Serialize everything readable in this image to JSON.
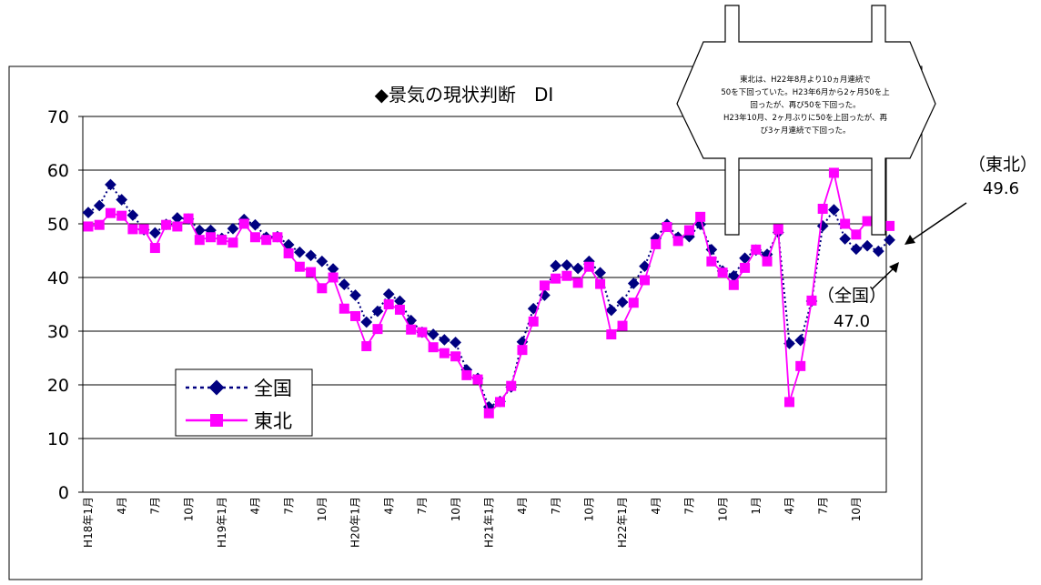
{
  "chart_data": {
    "type": "line",
    "title": "◆景気の現状判断　DI",
    "xlabel": "",
    "ylabel": "",
    "ylim": [
      0,
      70
    ],
    "yticks": [
      0,
      10,
      20,
      30,
      40,
      50,
      60,
      70
    ],
    "grid": true,
    "legend_position": "lower-left",
    "x_tick_labels": [
      "H18年1月",
      "4月",
      "7月",
      "10月",
      "H19年1月",
      "4月",
      "7月",
      "10月",
      "H20年1月",
      "4月",
      "7月",
      "10月",
      "H21年1月",
      "4月",
      "7月",
      "10月",
      "H22年1月",
      "4月",
      "7月",
      "10月",
      "1月",
      "4月",
      "7月",
      "10月"
    ],
    "series": [
      {
        "name": "全国",
        "color": "#000080",
        "marker": "diamond",
        "line": "dotted",
        "values": [
          52.1,
          53.4,
          57.3,
          54.5,
          51.6,
          48.9,
          48.3,
          49.9,
          51.1,
          50.9,
          48.8,
          48.8,
          47.3,
          49.1,
          50.8,
          49.8,
          47.5,
          47.6,
          46.1,
          44.7,
          44.1,
          43.0,
          41.6,
          38.7,
          36.7,
          31.7,
          33.7,
          36.9,
          35.6,
          32.0,
          29.8,
          29.4,
          28.4,
          27.9,
          22.8,
          21.2,
          15.9,
          16.9,
          19.6,
          28.0,
          34.2,
          36.7,
          42.2,
          42.3,
          41.7,
          43.0,
          40.9,
          33.9,
          35.4,
          38.9,
          42.1,
          47.3,
          49.9,
          47.5,
          47.6,
          49.9,
          45.2,
          41.2,
          40.3,
          43.6,
          45.1,
          44.3,
          48.4,
          27.7,
          28.3,
          35.6,
          49.6,
          52.6,
          47.2,
          45.3,
          45.9,
          44.9,
          47.0
        ]
      },
      {
        "name": "東北",
        "color": "#ff00ff",
        "marker": "square",
        "line": "solid",
        "values": [
          49.5,
          49.8,
          52.0,
          51.5,
          49.0,
          49.0,
          45.5,
          49.8,
          49.5,
          51.0,
          47.0,
          47.5,
          47.0,
          46.5,
          50.0,
          47.5,
          47.0,
          47.5,
          44.5,
          42.0,
          41.0,
          38.0,
          40.0,
          34.2,
          32.8,
          27.2,
          30.4,
          35.0,
          34.0,
          30.3,
          29.8,
          27.0,
          25.9,
          25.3,
          21.8,
          21.0,
          14.7,
          16.8,
          19.8,
          26.5,
          31.8,
          38.5,
          39.8,
          40.3,
          39.0,
          42.0,
          38.8,
          29.4,
          31.0,
          35.3,
          39.5,
          46.2,
          49.4,
          46.8,
          48.8,
          51.3,
          43.0,
          40.9,
          38.6,
          41.8,
          45.2,
          43.0,
          49.0,
          16.8,
          23.5,
          35.7,
          52.8,
          59.5,
          50.0,
          48.0,
          50.5,
          50.0,
          49.6
        ]
      }
    ],
    "annotations": {
      "callout_lines": [
        "東北は、H22年8月より10ヵ月連続で",
        "50を下回っていた。H23年6月から2ヶ月50を上",
        "回ったが、再び50を下回った。",
        "H23年10月、2ヶ月ぶりに50を上回ったが、再",
        "び3ヶ月連続で下回った。"
      ],
      "tohoku_label": "（東北）",
      "tohoku_value": "49.6",
      "zenkoku_label": "（全国）",
      "zenkoku_value": "47.0"
    }
  }
}
